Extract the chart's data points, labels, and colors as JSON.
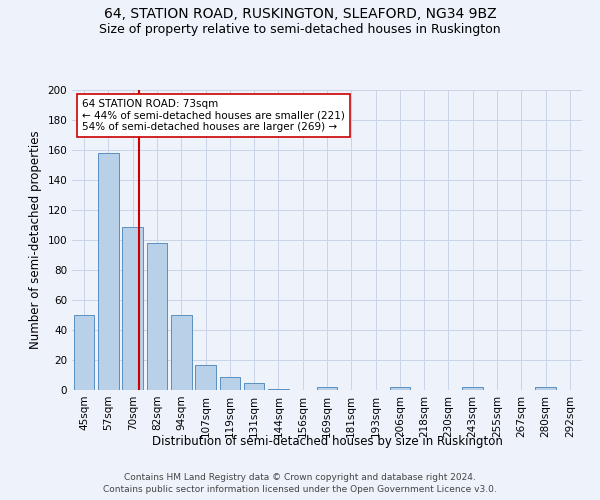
{
  "title": "64, STATION ROAD, RUSKINGTON, SLEAFORD, NG34 9BZ",
  "subtitle": "Size of property relative to semi-detached houses in Ruskington",
  "xlabel": "Distribution of semi-detached houses by size in Ruskington",
  "ylabel": "Number of semi-detached properties",
  "footnote1": "Contains HM Land Registry data © Crown copyright and database right 2024.",
  "footnote2": "Contains public sector information licensed under the Open Government Licence v3.0.",
  "bin_labels": [
    "45sqm",
    "57sqm",
    "70sqm",
    "82sqm",
    "94sqm",
    "107sqm",
    "119sqm",
    "131sqm",
    "144sqm",
    "156sqm",
    "169sqm",
    "181sqm",
    "193sqm",
    "206sqm",
    "218sqm",
    "230sqm",
    "243sqm",
    "255sqm",
    "267sqm",
    "280sqm",
    "292sqm"
  ],
  "bar_heights": [
    50,
    158,
    109,
    98,
    50,
    17,
    9,
    5,
    1,
    0,
    2,
    0,
    0,
    2,
    0,
    0,
    2,
    0,
    0,
    2,
    0
  ],
  "bar_color": "#b8d0e8",
  "bar_edge_color": "#5a8fc0",
  "subject_line_color": "#cc0000",
  "annotation_text": "64 STATION ROAD: 73sqm\n← 44% of semi-detached houses are smaller (221)\n54% of semi-detached houses are larger (269) →",
  "annotation_box_color": "#ffffff",
  "annotation_box_edge": "#cc0000",
  "ylim": [
    0,
    200
  ],
  "yticks": [
    0,
    20,
    40,
    60,
    80,
    100,
    120,
    140,
    160,
    180,
    200
  ],
  "background_color": "#eef2fa",
  "grid_color": "#c8d4e8",
  "title_fontsize": 10,
  "subtitle_fontsize": 9,
  "axis_label_fontsize": 8.5,
  "tick_fontsize": 7.5,
  "footnote_fontsize": 6.5
}
